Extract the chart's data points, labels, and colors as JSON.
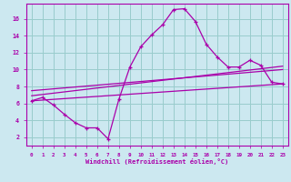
{
  "xlabel": "Windchill (Refroidissement éolien,°C)",
  "xlim": [
    -0.5,
    23.5
  ],
  "ylim": [
    1.0,
    17.8
  ],
  "xticks": [
    0,
    1,
    2,
    3,
    4,
    5,
    6,
    7,
    8,
    9,
    10,
    11,
    12,
    13,
    14,
    15,
    16,
    17,
    18,
    19,
    20,
    21,
    22,
    23
  ],
  "yticks": [
    2,
    4,
    6,
    8,
    10,
    12,
    14,
    16
  ],
  "bg_color": "#cce8f0",
  "line_color": "#aa00aa",
  "grid_color": "#99cccc",
  "series1_x": [
    0,
    1,
    2,
    3,
    4,
    5,
    6,
    7,
    8,
    9,
    10,
    11,
    12,
    13,
    14,
    15,
    16,
    17,
    18,
    19,
    20,
    21,
    22,
    23
  ],
  "series1_y": [
    6.3,
    6.7,
    5.8,
    4.7,
    3.7,
    3.1,
    3.1,
    1.8,
    6.5,
    10.3,
    12.7,
    14.1,
    15.3,
    17.1,
    17.2,
    15.7,
    13.0,
    11.5,
    10.3,
    10.3,
    11.1,
    10.5,
    8.5,
    8.3
  ],
  "series2_x": [
    0,
    23
  ],
  "series2_y": [
    6.3,
    8.3
  ],
  "series3_x": [
    0,
    23
  ],
  "series3_y": [
    6.9,
    10.4
  ],
  "series4_x": [
    0,
    23
  ],
  "series4_y": [
    7.5,
    10.0
  ]
}
